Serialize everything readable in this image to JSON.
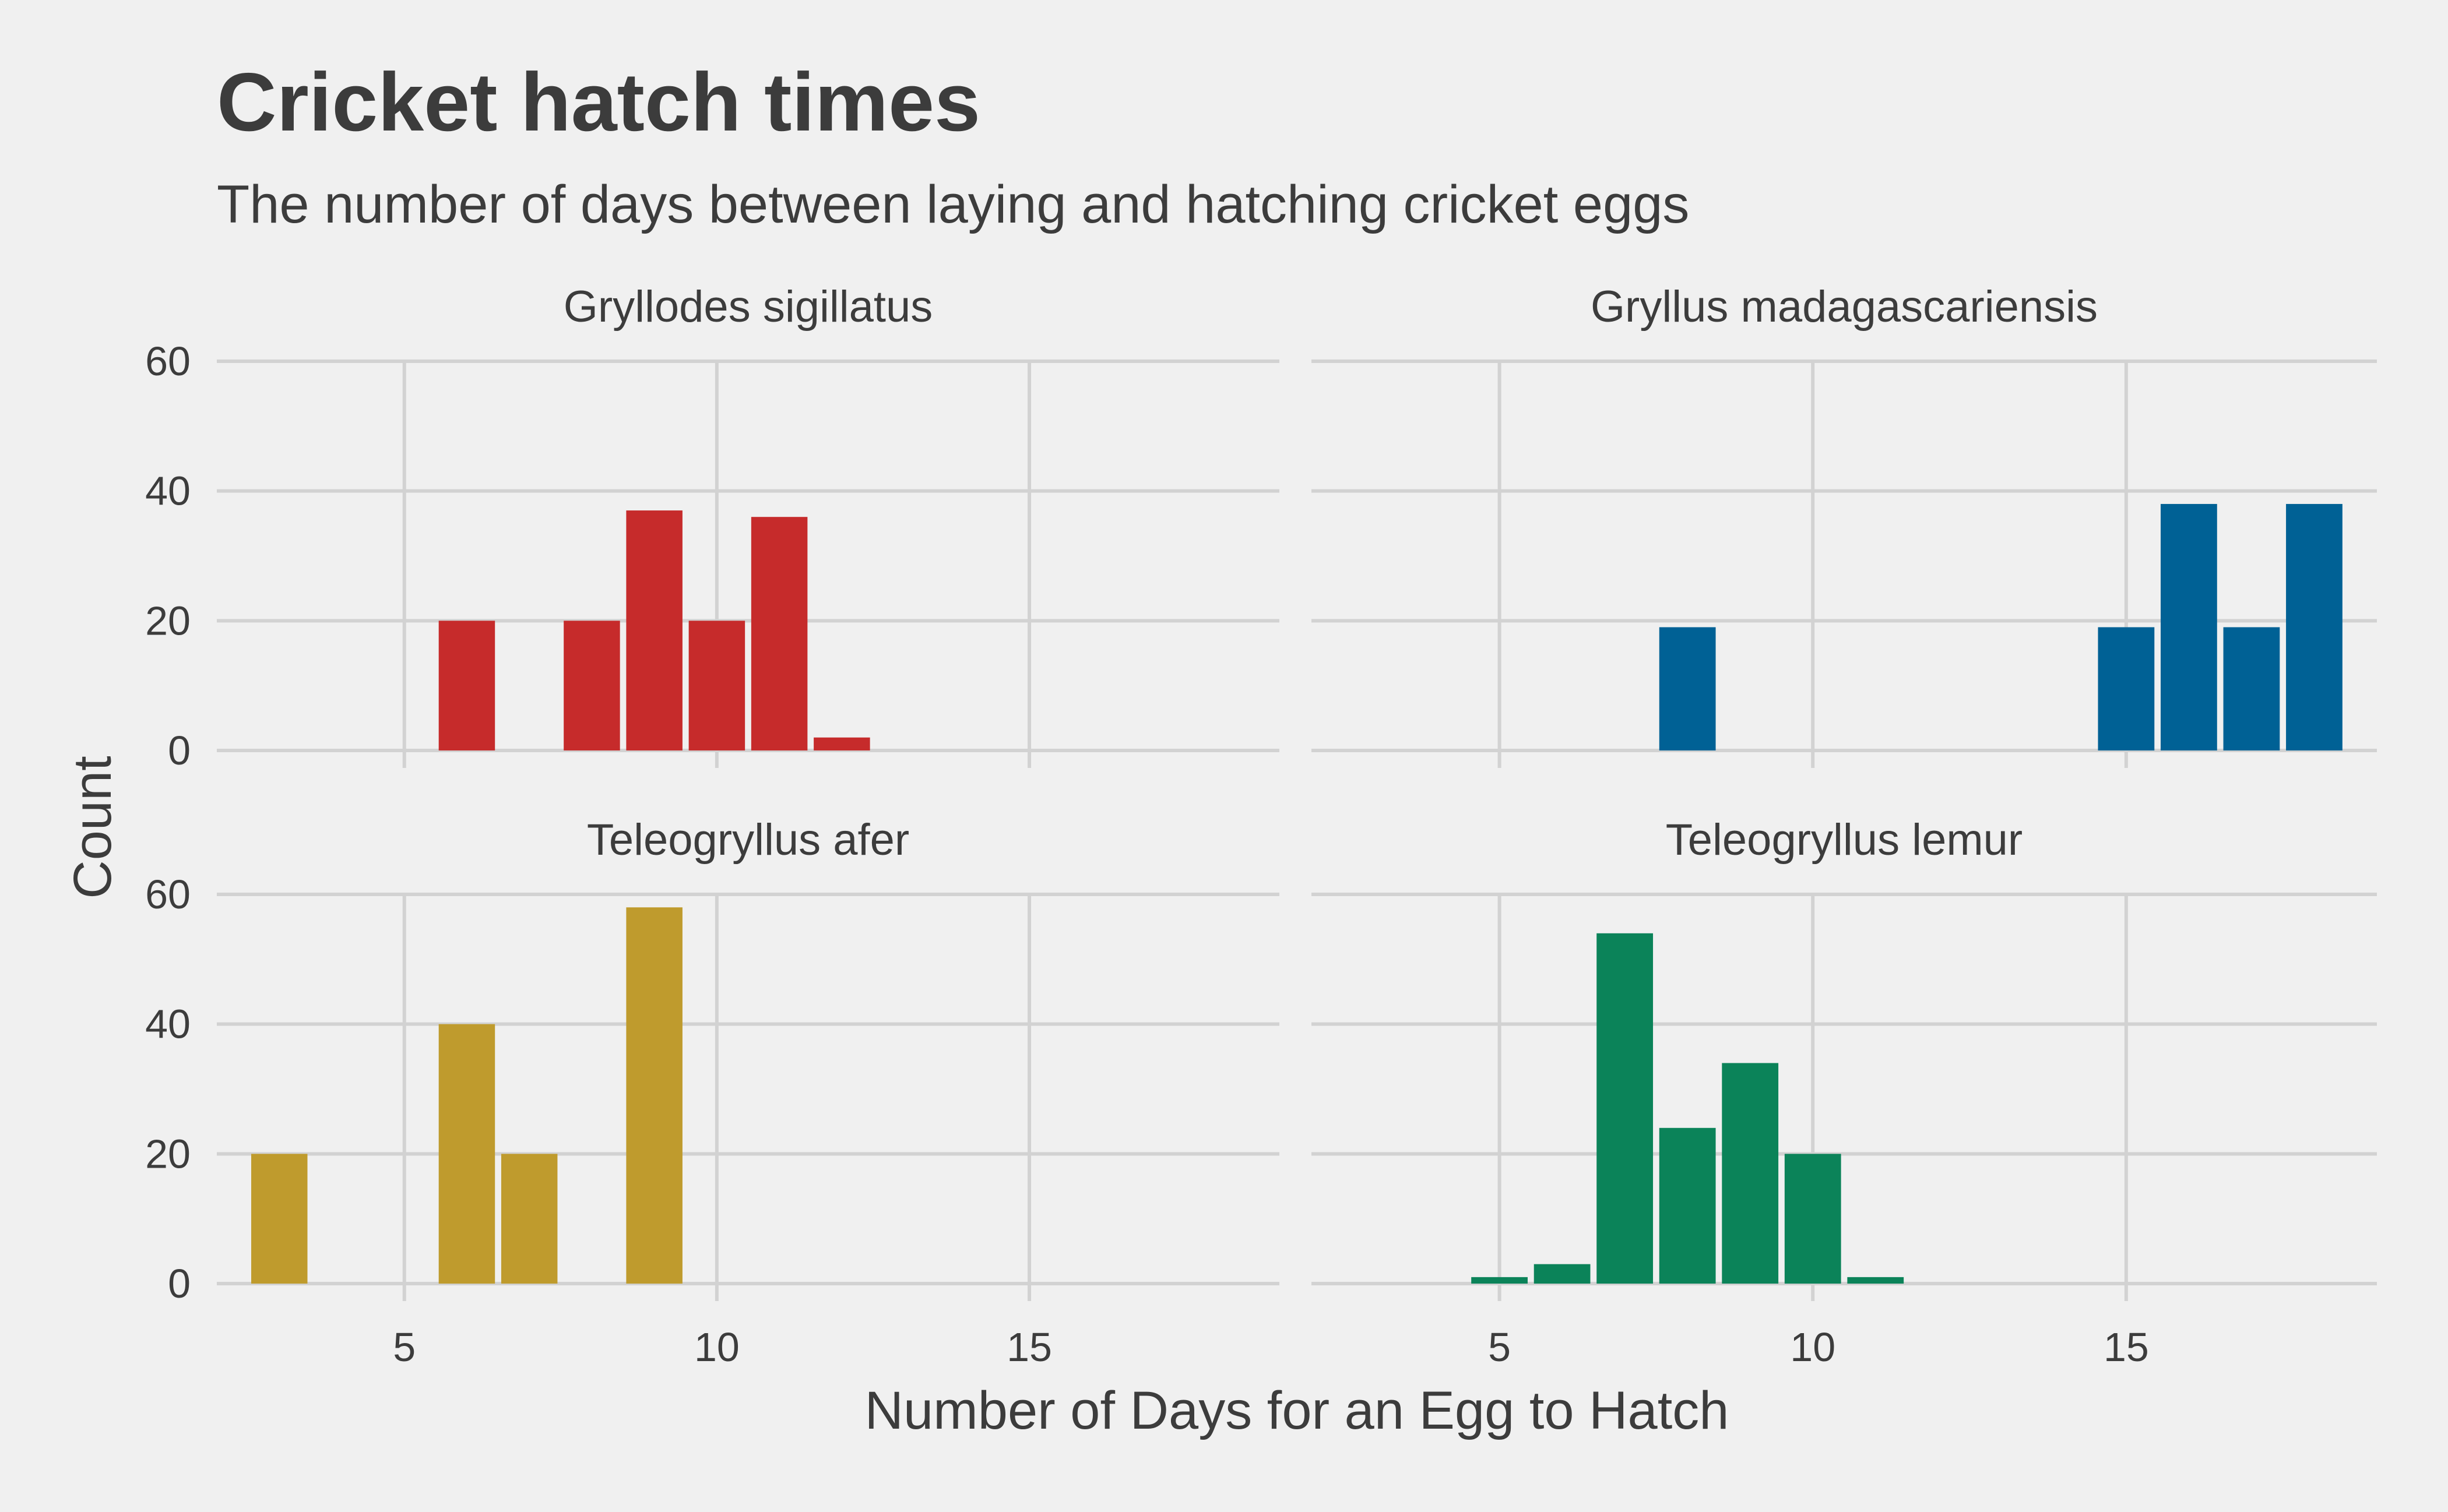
{
  "chart_data": {
    "type": "bar",
    "title": "Cricket hatch times",
    "subtitle": "The number of days between laying and hatching cricket eggs",
    "xlabel": "Number of Days for an Egg to Hatch",
    "ylabel": "Count",
    "xlim": [
      2,
      19
    ],
    "ylim": [
      0,
      60
    ],
    "x_ticks": [
      5,
      10,
      15
    ],
    "y_ticks": [
      0,
      20,
      40,
      60
    ],
    "grid": true,
    "facets": [
      {
        "name": "Gryllodes sigillatus",
        "color": "#c62b2b",
        "x": [
          6,
          8,
          9,
          10,
          11,
          12
        ],
        "values": [
          20,
          20,
          37,
          20,
          36,
          2
        ]
      },
      {
        "name": "Gryllus madagascariensis",
        "color": "#006195",
        "x": [
          8,
          15,
          16,
          17,
          18
        ],
        "values": [
          19,
          19,
          38,
          19,
          38
        ]
      },
      {
        "name": "Teleogryllus afer",
        "color": "#bf9b2d",
        "x": [
          3,
          6,
          7,
          9
        ],
        "values": [
          20,
          40,
          20,
          58
        ]
      },
      {
        "name": "Teleogryllus lemur",
        "color": "#0b8359",
        "x": [
          5,
          6,
          7,
          8,
          9,
          10,
          11
        ],
        "values": [
          1,
          3,
          54,
          24,
          34,
          20,
          1
        ]
      }
    ]
  }
}
